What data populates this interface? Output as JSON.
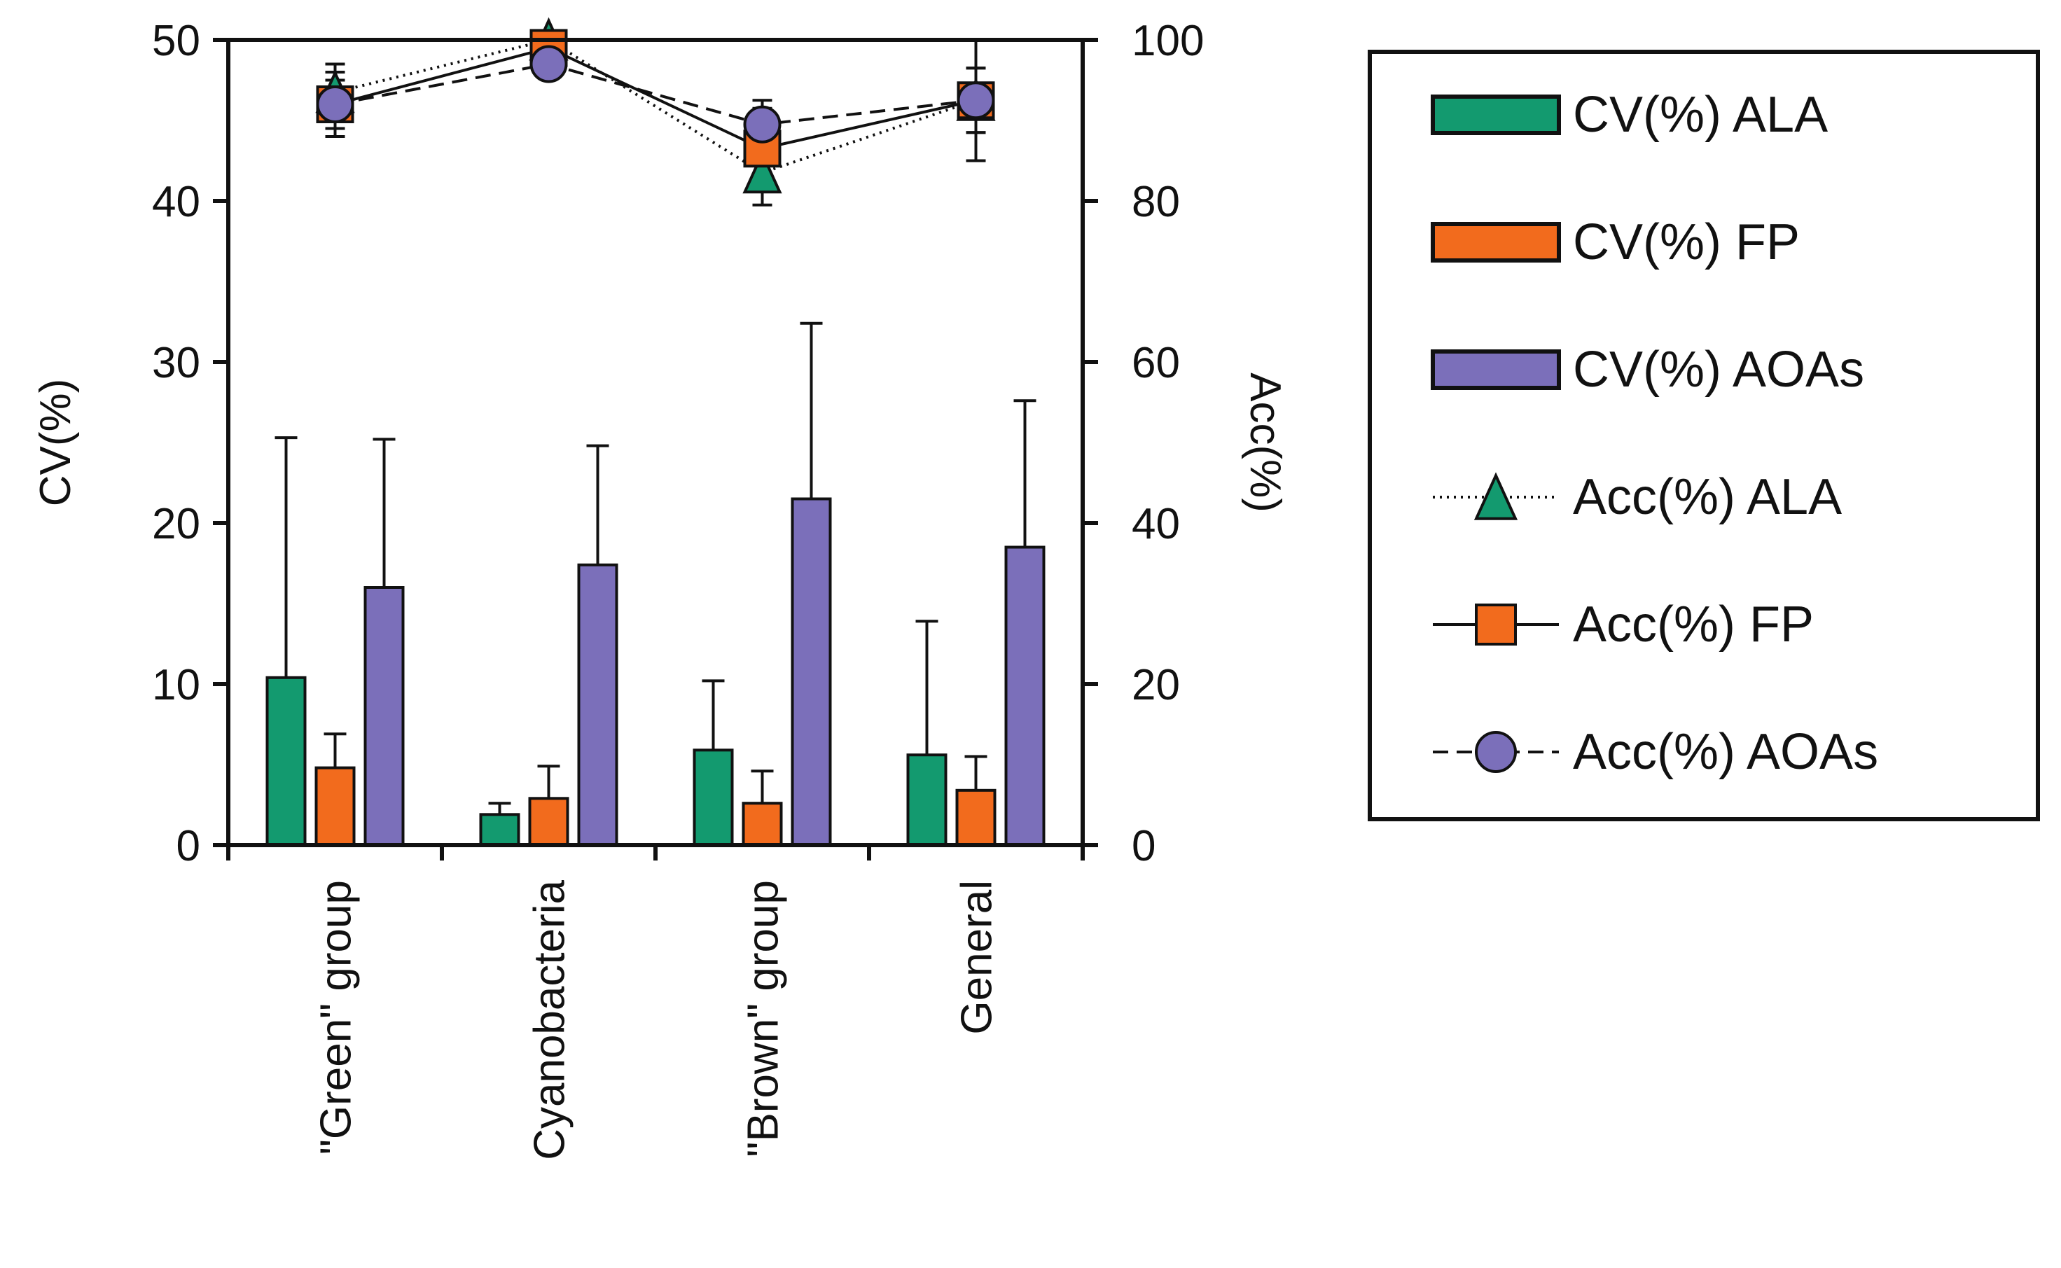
{
  "chart_data": {
    "type": "bar",
    "title": "",
    "categories": [
      "\"Green\" group",
      "Cyanobacteria",
      "\"Brown\" group",
      "General"
    ],
    "left_axis": {
      "label": "CV(%)",
      "range": [
        0,
        50
      ],
      "ticks": [
        "0",
        "10",
        "20",
        "30",
        "40",
        "50"
      ],
      "tick_values": [
        0,
        10,
        20,
        30,
        40,
        50
      ]
    },
    "right_axis": {
      "label": "Acc(%)",
      "range": [
        0,
        100
      ],
      "ticks": [
        "0",
        "20",
        "40",
        "60",
        "80",
        "100"
      ],
      "tick_values": [
        0,
        20,
        40,
        60,
        80,
        100
      ]
    },
    "bar_series": [
      {
        "name": "CV(%) ALA",
        "color": "#139a6f",
        "values": [
          10.4,
          1.9,
          5.9,
          5.6
        ],
        "errors": [
          14.9,
          0.7,
          4.3,
          8.3
        ]
      },
      {
        "name": "CV(%) FP",
        "color": "#f26b1d",
        "values": [
          4.8,
          2.9,
          2.6,
          3.4
        ],
        "errors": [
          2.1,
          2.0,
          2.0,
          2.1
        ]
      },
      {
        "name": "CV(%) AOAs",
        "color": "#7b6fba",
        "values": [
          16.0,
          17.4,
          21.5,
          18.5
        ],
        "errors": [
          9.2,
          7.4,
          10.9,
          9.1
        ]
      }
    ],
    "line_series": [
      {
        "name": "Acc(%) ALA",
        "axis": "right",
        "marker": "triangle",
        "line_style": "dotted",
        "color": "#139a6f",
        "values": [
          93.5,
          100.0,
          83.5,
          92.5
        ],
        "errors": [
          3.5,
          1.0,
          4.0,
          4.0
        ]
      },
      {
        "name": "Acc(%) FP",
        "axis": "right",
        "marker": "square",
        "line_style": "solid",
        "color": "#f26b1d",
        "values": [
          92.0,
          99.0,
          86.5,
          92.5
        ],
        "errors": [
          4.0,
          2.0,
          5.0,
          7.5
        ]
      },
      {
        "name": "Acc(%) AOAs",
        "axis": "right",
        "marker": "circle",
        "line_style": "dashed",
        "color": "#7b6fba",
        "values": [
          92.0,
          97.0,
          89.5,
          92.5
        ],
        "errors": [
          3.0,
          1.5,
          3.0,
          4.0
        ]
      }
    ],
    "legend": {
      "position": "right",
      "entries": [
        "CV(%) ALA",
        "CV(%) FP",
        "CV(%) AOAs",
        "Acc(%) ALA",
        "Acc(%) FP",
        "Acc(%) AOAs"
      ]
    },
    "grid": false
  }
}
